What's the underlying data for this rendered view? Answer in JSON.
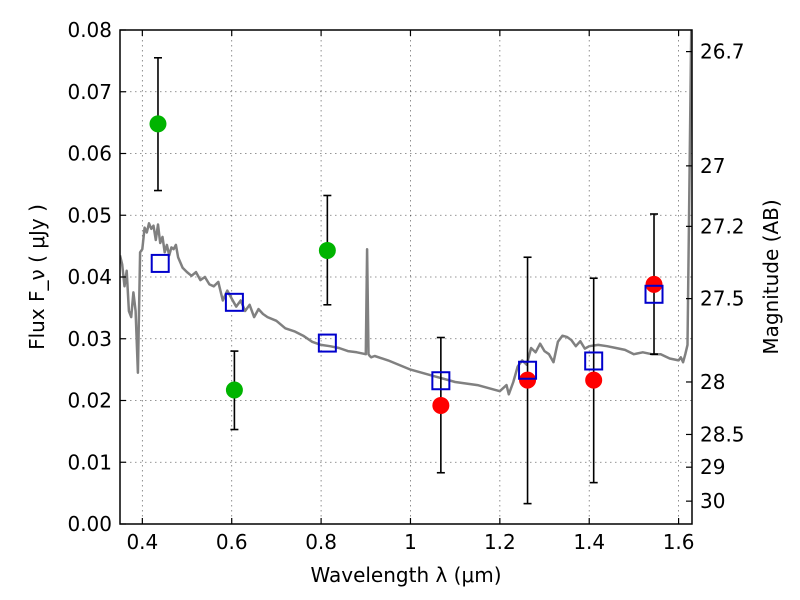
{
  "chart_data": {
    "type": "scatter",
    "title": "",
    "xlabel": "Wavelength  λ (μm)",
    "ylabel": "Flux  F_ν  ( μJy )",
    "ylabel_right": "Magnitude (AB)",
    "xlim": [
      0.35,
      1.63
    ],
    "ylim": [
      0.0,
      0.08
    ],
    "grid": true,
    "x_ticks": [
      0.4,
      0.6,
      0.8,
      1.0,
      1.2,
      1.4,
      1.6
    ],
    "x_tick_labels": [
      "0.4",
      "0.6",
      "0.8",
      "1",
      "1.2",
      "1.4",
      "1.6"
    ],
    "y_ticks": [
      0.0,
      0.01,
      0.02,
      0.03,
      0.04,
      0.05,
      0.06,
      0.07,
      0.08
    ],
    "y_tick_labels": [
      "0.00",
      "0.01",
      "0.02",
      "0.03",
      "0.04",
      "0.05",
      "0.06",
      "0.07",
      "0.08"
    ],
    "right_axis_ticks": [
      {
        "label": "26.7",
        "flux": 0.0765
      },
      {
        "label": "27",
        "flux": 0.058
      },
      {
        "label": "27.2",
        "flux": 0.0482
      },
      {
        "label": "27.5",
        "flux": 0.0365
      },
      {
        "label": "28",
        "flux": 0.023
      },
      {
        "label": "28.5",
        "flux": 0.0145
      },
      {
        "label": "29",
        "flux": 0.0092
      },
      {
        "label": "30",
        "flux": 0.0037
      }
    ],
    "series": [
      {
        "marker": "circle",
        "color": "#00b400",
        "points": [
          {
            "x": 0.435,
            "y": 0.0648,
            "yerr_low": 0.054,
            "yerr_high": 0.0755
          },
          {
            "x": 0.606,
            "y": 0.0217,
            "yerr_low": 0.0153,
            "yerr_high": 0.028
          },
          {
            "x": 0.814,
            "y": 0.0443,
            "yerr_low": 0.0355,
            "yerr_high": 0.0532
          }
        ]
      },
      {
        "marker": "circle",
        "color": "#ff0000",
        "points": [
          {
            "x": 1.068,
            "y": 0.0192,
            "yerr_low": 0.0083,
            "yerr_high": 0.0302
          },
          {
            "x": 1.262,
            "y": 0.0233,
            "yerr_low": 0.0033,
            "yerr_high": 0.0432
          },
          {
            "x": 1.41,
            "y": 0.0233,
            "yerr_low": 0.0067,
            "yerr_high": 0.0398
          },
          {
            "x": 1.545,
            "y": 0.0388,
            "yerr_low": 0.0275,
            "yerr_high": 0.0502
          }
        ]
      },
      {
        "marker": "square-open",
        "color": "#0000cc",
        "points": [
          {
            "x": 0.44,
            "y": 0.0422
          },
          {
            "x": 0.606,
            "y": 0.0359
          },
          {
            "x": 0.814,
            "y": 0.0293
          },
          {
            "x": 1.068,
            "y": 0.0232
          },
          {
            "x": 1.262,
            "y": 0.0249
          },
          {
            "x": 1.41,
            "y": 0.0264
          },
          {
            "x": 1.545,
            "y": 0.0372
          }
        ]
      }
    ],
    "model_spectrum": {
      "color": "#808080",
      "x": [
        0.35,
        0.355,
        0.36,
        0.365,
        0.37,
        0.375,
        0.38,
        0.385,
        0.39,
        0.395,
        0.4,
        0.405,
        0.41,
        0.415,
        0.42,
        0.425,
        0.43,
        0.435,
        0.44,
        0.445,
        0.45,
        0.455,
        0.46,
        0.465,
        0.47,
        0.475,
        0.48,
        0.49,
        0.5,
        0.51,
        0.52,
        0.53,
        0.54,
        0.55,
        0.56,
        0.57,
        0.58,
        0.59,
        0.6,
        0.61,
        0.62,
        0.63,
        0.64,
        0.65,
        0.66,
        0.67,
        0.68,
        0.7,
        0.72,
        0.74,
        0.76,
        0.78,
        0.8,
        0.82,
        0.84,
        0.86,
        0.88,
        0.9,
        0.903,
        0.906,
        0.909,
        0.912,
        0.92,
        0.95,
        1.0,
        1.05,
        1.1,
        1.15,
        1.2,
        1.215,
        1.22,
        1.23,
        1.24,
        1.25,
        1.26,
        1.27,
        1.28,
        1.29,
        1.3,
        1.31,
        1.32,
        1.33,
        1.34,
        1.35,
        1.36,
        1.37,
        1.38,
        1.39,
        1.4,
        1.42,
        1.44,
        1.46,
        1.48,
        1.5,
        1.52,
        1.54,
        1.56,
        1.58,
        1.6,
        1.605,
        1.61,
        1.615,
        1.62,
        1.63
      ],
      "y": [
        0.0435,
        0.042,
        0.0385,
        0.041,
        0.0345,
        0.0335,
        0.0375,
        0.0345,
        0.0245,
        0.044,
        0.0445,
        0.048,
        0.0472,
        0.0487,
        0.0478,
        0.0483,
        0.046,
        0.0485,
        0.0455,
        0.0465,
        0.044,
        0.0452,
        0.0435,
        0.0448,
        0.0445,
        0.0452,
        0.0432,
        0.0415,
        0.0408,
        0.0402,
        0.0408,
        0.0395,
        0.04,
        0.0388,
        0.0385,
        0.0392,
        0.0362,
        0.0378,
        0.0365,
        0.0352,
        0.0362,
        0.0345,
        0.0355,
        0.0335,
        0.0348,
        0.034,
        0.0335,
        0.0329,
        0.0317,
        0.0312,
        0.0305,
        0.0295,
        0.029,
        0.0288,
        0.0285,
        0.028,
        0.0278,
        0.0275,
        0.0445,
        0.0275,
        0.0272,
        0.027,
        0.0272,
        0.0265,
        0.025,
        0.024,
        0.023,
        0.0225,
        0.0215,
        0.0225,
        0.021,
        0.023,
        0.0255,
        0.0265,
        0.0258,
        0.0285,
        0.0278,
        0.0292,
        0.028,
        0.0275,
        0.0262,
        0.0295,
        0.0305,
        0.0303,
        0.0298,
        0.0288,
        0.0296,
        0.0284,
        0.0288,
        0.029,
        0.0288,
        0.0285,
        0.0282,
        0.0275,
        0.0278,
        0.0275,
        0.0275,
        0.0268,
        0.0265,
        0.027,
        0.0262,
        0.0275,
        0.029,
        0.09
      ]
    }
  }
}
